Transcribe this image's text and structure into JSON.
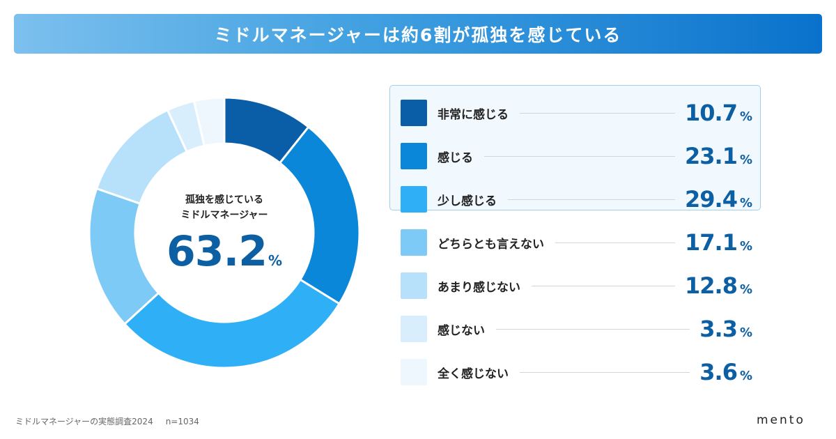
{
  "header": {
    "title": "ミドルマネージャーは約6割が孤独を感じている"
  },
  "donut_center": {
    "label_line1": "孤独を感じている",
    "label_line2": "ミドルマネージャー",
    "value": "63.2",
    "unit": "%"
  },
  "chart_data": {
    "type": "pie",
    "donut": true,
    "title": "ミドルマネージャーは約6割が孤独を感じている",
    "categories": [
      "非常に感じる",
      "感じる",
      "少し感じる",
      "どちらとも言えない",
      "あまり感じない",
      "感じない",
      "全く感じない"
    ],
    "values": [
      10.7,
      23.1,
      29.4,
      17.1,
      12.8,
      3.3,
      3.6
    ],
    "value_labels": [
      "10.7",
      "23.1",
      "29.4",
      "17.1",
      "12.8",
      "3.3",
      "3.6"
    ],
    "unit": "%",
    "colors": [
      "#0a5ea8",
      "#0b87d9",
      "#2fb0f6",
      "#7dcaf7",
      "#b7e0fb",
      "#d9eefd",
      "#eef7fe"
    ],
    "highlighted_categories": [
      "非常に感じる",
      "感じる",
      "少し感じる"
    ],
    "legend_position": "right"
  },
  "footer": {
    "source": "ミドルマネージャーの実態調査2024",
    "n": "n=1034",
    "logo": "mento"
  }
}
